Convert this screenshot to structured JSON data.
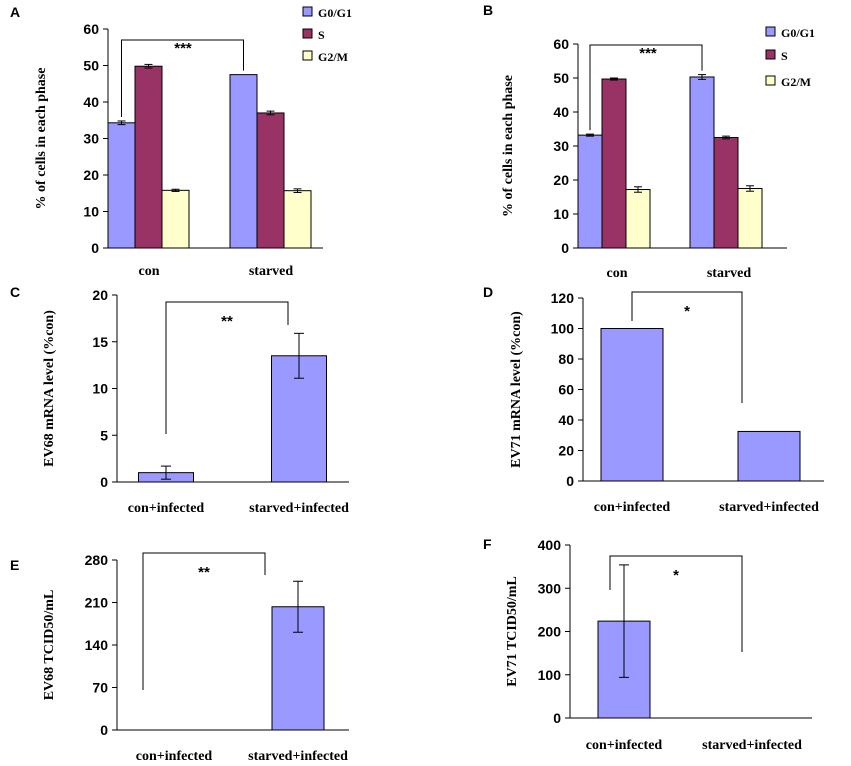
{
  "colors": {
    "g0g1": "#9999FF",
    "s": "#993366",
    "g2m": "#FFFFCC",
    "axis": "#000000"
  },
  "chart_data": [
    {
      "panel": "A",
      "type": "bar",
      "ylabel": "% of cells in each phase",
      "ylim": [
        0,
        60
      ],
      "yticks": [
        0,
        10,
        20,
        30,
        40,
        50,
        60
      ],
      "categories": [
        "con",
        "starved"
      ],
      "legend": [
        "G0/G1",
        "S",
        "G2/M"
      ],
      "series": [
        {
          "name": "G0/G1",
          "values": [
            34.3,
            47.5
          ],
          "errors": [
            0.5,
            0.0
          ]
        },
        {
          "name": "S",
          "values": [
            49.8,
            37.0
          ],
          "errors": [
            0.5,
            0.5
          ]
        },
        {
          "name": "G2/M",
          "values": [
            15.8,
            15.7
          ],
          "errors": [
            0.3,
            0.5
          ]
        }
      ],
      "significance": {
        "label": "***",
        "between": [
          "con",
          "starved"
        ],
        "series": "G0/G1"
      }
    },
    {
      "panel": "B",
      "type": "bar",
      "ylabel": "% of cells in each phase",
      "ylim": [
        0,
        60
      ],
      "yticks": [
        0,
        10,
        20,
        30,
        40,
        50,
        60
      ],
      "categories": [
        "con",
        "starved"
      ],
      "legend": [
        "G0/G1",
        "S",
        "G2/M"
      ],
      "series": [
        {
          "name": "G0/G1",
          "values": [
            33.2,
            50.3
          ],
          "errors": [
            0.3,
            0.7
          ]
        },
        {
          "name": "S",
          "values": [
            49.7,
            32.5
          ],
          "errors": [
            0.3,
            0.4
          ]
        },
        {
          "name": "G2/M",
          "values": [
            17.2,
            17.5
          ],
          "errors": [
            0.8,
            0.8
          ]
        }
      ],
      "significance": {
        "label": "***",
        "between": [
          "con",
          "starved"
        ],
        "series": "G0/G1"
      }
    },
    {
      "panel": "C",
      "type": "bar",
      "ylabel": "EV68 mRNA level (%con)",
      "ylim": [
        0,
        20
      ],
      "yticks": [
        0,
        5,
        10,
        15,
        20
      ],
      "categories": [
        "con+infected",
        "starved+infected"
      ],
      "series": [
        {
          "name": "EV68",
          "values": [
            1.0,
            13.5
          ],
          "errors": [
            0.7,
            2.4
          ]
        }
      ],
      "significance": {
        "label": "**",
        "between": [
          "con+infected",
          "starved+infected"
        ]
      }
    },
    {
      "panel": "D",
      "type": "bar",
      "ylabel": "EV71 mRNA level (%con)",
      "ylim": [
        0,
        120
      ],
      "yticks": [
        0,
        20,
        40,
        60,
        80,
        100,
        120
      ],
      "categories": [
        "con+infected",
        "starved+infected"
      ],
      "series": [
        {
          "name": "EV71",
          "values": [
            100,
            32.5
          ],
          "errors": [
            0,
            0
          ]
        }
      ],
      "significance": {
        "label": "*",
        "between": [
          "con+infected",
          "starved+infected"
        ]
      }
    },
    {
      "panel": "E",
      "type": "bar",
      "ylabel": "EV68 TCID50/mL",
      "ylim": [
        0,
        280
      ],
      "yticks": [
        0,
        70,
        140,
        210,
        280
      ],
      "categories": [
        "con+infected",
        "starved+infected"
      ],
      "series": [
        {
          "name": "EV68",
          "values": [
            0,
            203
          ],
          "errors": [
            0,
            42
          ]
        }
      ],
      "significance": {
        "label": "**",
        "between": [
          "con+infected",
          "starved+infected"
        ]
      }
    },
    {
      "panel": "F",
      "type": "bar",
      "ylabel": "EV71 TCID50/mL",
      "ylim": [
        0,
        400
      ],
      "yticks": [
        0,
        100,
        200,
        300,
        400
      ],
      "categories": [
        "con+infected",
        "starved+infected"
      ],
      "series": [
        {
          "name": "EV71",
          "values": [
            224,
            0
          ],
          "errors": [
            130,
            0
          ]
        }
      ],
      "significance": {
        "label": "*",
        "between": [
          "con+infected",
          "starved+infected"
        ]
      }
    }
  ]
}
